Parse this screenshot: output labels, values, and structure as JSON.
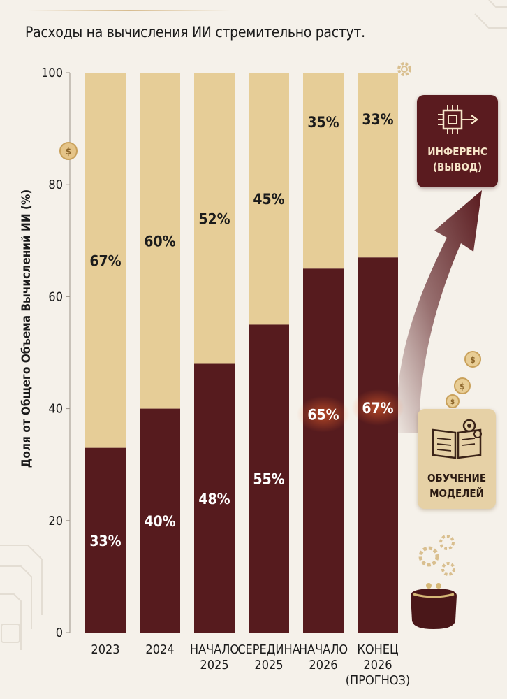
{
  "title": "Расходы на вычисления ИИ стремительно растут.",
  "colors": {
    "inference": "#e6cd97",
    "training": "#561b1e",
    "background": "#f5f1ea"
  },
  "legend_cards": {
    "inference": {
      "label_line1": "ИНФЕРЕНС",
      "label_line2": "(ВЫВОД)",
      "icon": "chip-arrow-icon"
    },
    "training": {
      "label_line1": "ОБУЧЕНИЕ",
      "label_line2": "МОДЕЛЕЙ",
      "icon": "book-gears-icon"
    }
  },
  "chart_data": {
    "type": "bar",
    "stacked": true,
    "title": "Расходы на вычисления ИИ стремительно растут.",
    "xlabel": "",
    "ylabel": "Доля от Общего Объема Вычислений ИИ (%)",
    "ylim": [
      0,
      100
    ],
    "yticks": [
      0,
      20,
      40,
      60,
      80,
      100
    ],
    "categories": [
      [
        "2023"
      ],
      [
        "2024"
      ],
      [
        "НАЧАЛО",
        "2025"
      ],
      [
        "СЕРЕДИНА",
        "2025"
      ],
      [
        "НАЧАЛО",
        "2026"
      ],
      [
        "КОНЕЦ",
        "2026",
        "(ПРОГНОЗ)"
      ]
    ],
    "series": [
      {
        "name": "Обучение моделей",
        "color": "#561b1e",
        "values": [
          33,
          40,
          48,
          55,
          65,
          67
        ],
        "labels": [
          "33%",
          "40%",
          "48%",
          "55%",
          "65%",
          "67%"
        ]
      },
      {
        "name": "Инференс (вывод)",
        "color": "#e6cd97",
        "values": [
          67,
          60,
          52,
          45,
          35,
          33
        ],
        "labels": [
          "67%",
          "60%",
          "52%",
          "45%",
          "35%",
          "33%"
        ]
      }
    ],
    "grid": false
  }
}
